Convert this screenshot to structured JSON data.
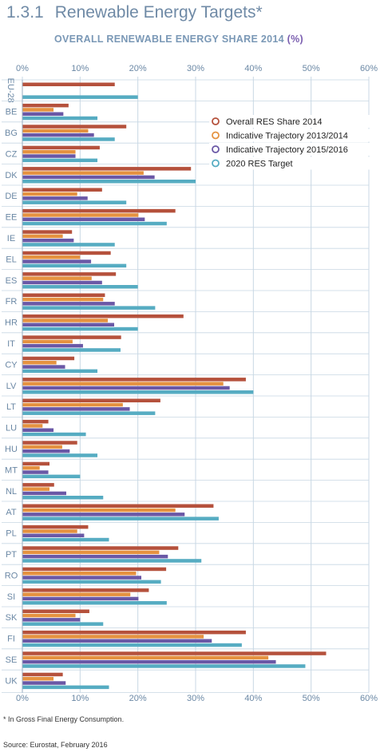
{
  "header": {
    "section_number": "1.3.1",
    "section_title": "Renewable Energy Targets*",
    "chart_title": "OVERALL RENEWABLE ENERGY SHARE 2014",
    "chart_unit": "(%)"
  },
  "footer": {
    "footnote": "* In Gross Final Energy Consumption.",
    "source": "Source: Eurostat, February 2016"
  },
  "colors": {
    "overall": "#b5513c",
    "traj1314": "#e59240",
    "traj1516": "#6a58a6",
    "target": "#56acc2",
    "axis_text": "#6b88a5",
    "grid": "#c8d7e4"
  },
  "chart_data": {
    "type": "bar",
    "orientation": "horizontal",
    "xlim": [
      0,
      60
    ],
    "ticks": [
      "0%",
      "10%",
      "20%",
      "30%",
      "40%",
      "50%",
      "60%"
    ],
    "tick_values": [
      0,
      10,
      20,
      30,
      40,
      50,
      60
    ],
    "grid": true,
    "legend_position": "top-right",
    "categories": [
      "EU-28",
      "BE",
      "BG",
      "CZ",
      "DK",
      "DE",
      "EE",
      "IE",
      "EL",
      "ES",
      "FR",
      "HR",
      "IT",
      "CY",
      "LV",
      "LT",
      "LU",
      "HU",
      "MT",
      "NL",
      "AT",
      "PL",
      "PT",
      "RO",
      "SI",
      "SK",
      "FI",
      "SE",
      "UK"
    ],
    "series": [
      {
        "name": "Overall RES Share 2014",
        "color_key": "overall",
        "values": [
          16,
          8,
          18,
          13.4,
          29.2,
          13.8,
          26.5,
          8.6,
          15.3,
          16.2,
          14.3,
          27.9,
          17.1,
          9,
          38.7,
          23.9,
          4.5,
          9.5,
          4.7,
          5.5,
          33.1,
          11.4,
          27,
          24.9,
          21.9,
          11.6,
          38.7,
          52.6,
          7
        ]
      },
      {
        "name": "Indicative Trajectory 2013/2014",
        "color_key": "traj1314",
        "values": [
          null,
          5.4,
          11.4,
          9.2,
          21,
          9.5,
          20.1,
          7,
          10,
          12,
          14,
          14.8,
          8.7,
          5.9,
          34.8,
          17.4,
          3.5,
          6.9,
          3,
          4.7,
          26.5,
          9.5,
          23.7,
          19.7,
          18.7,
          9.2,
          31.4,
          42.6,
          5.4
        ]
      },
      {
        "name": "Indicative Trajectory 2015/2016",
        "color_key": "traj1516",
        "values": [
          null,
          7.1,
          12.4,
          9.2,
          22.9,
          11.3,
          21.2,
          8.9,
          11.9,
          13.8,
          16,
          15.9,
          10.5,
          7.4,
          35.9,
          18.6,
          5.4,
          8.2,
          4.5,
          7.6,
          28.1,
          10.7,
          25.2,
          20.6,
          20.1,
          10,
          32.8,
          43.9,
          7.5
        ]
      },
      {
        "name": "2020 RES Target",
        "color_key": "target",
        "values": [
          20,
          13,
          16,
          13,
          30,
          18,
          25,
          16,
          18,
          20,
          23,
          20,
          17,
          13,
          40,
          23,
          11,
          13,
          10,
          14,
          34,
          15,
          31,
          24,
          25,
          14,
          38,
          49,
          15
        ]
      }
    ]
  }
}
